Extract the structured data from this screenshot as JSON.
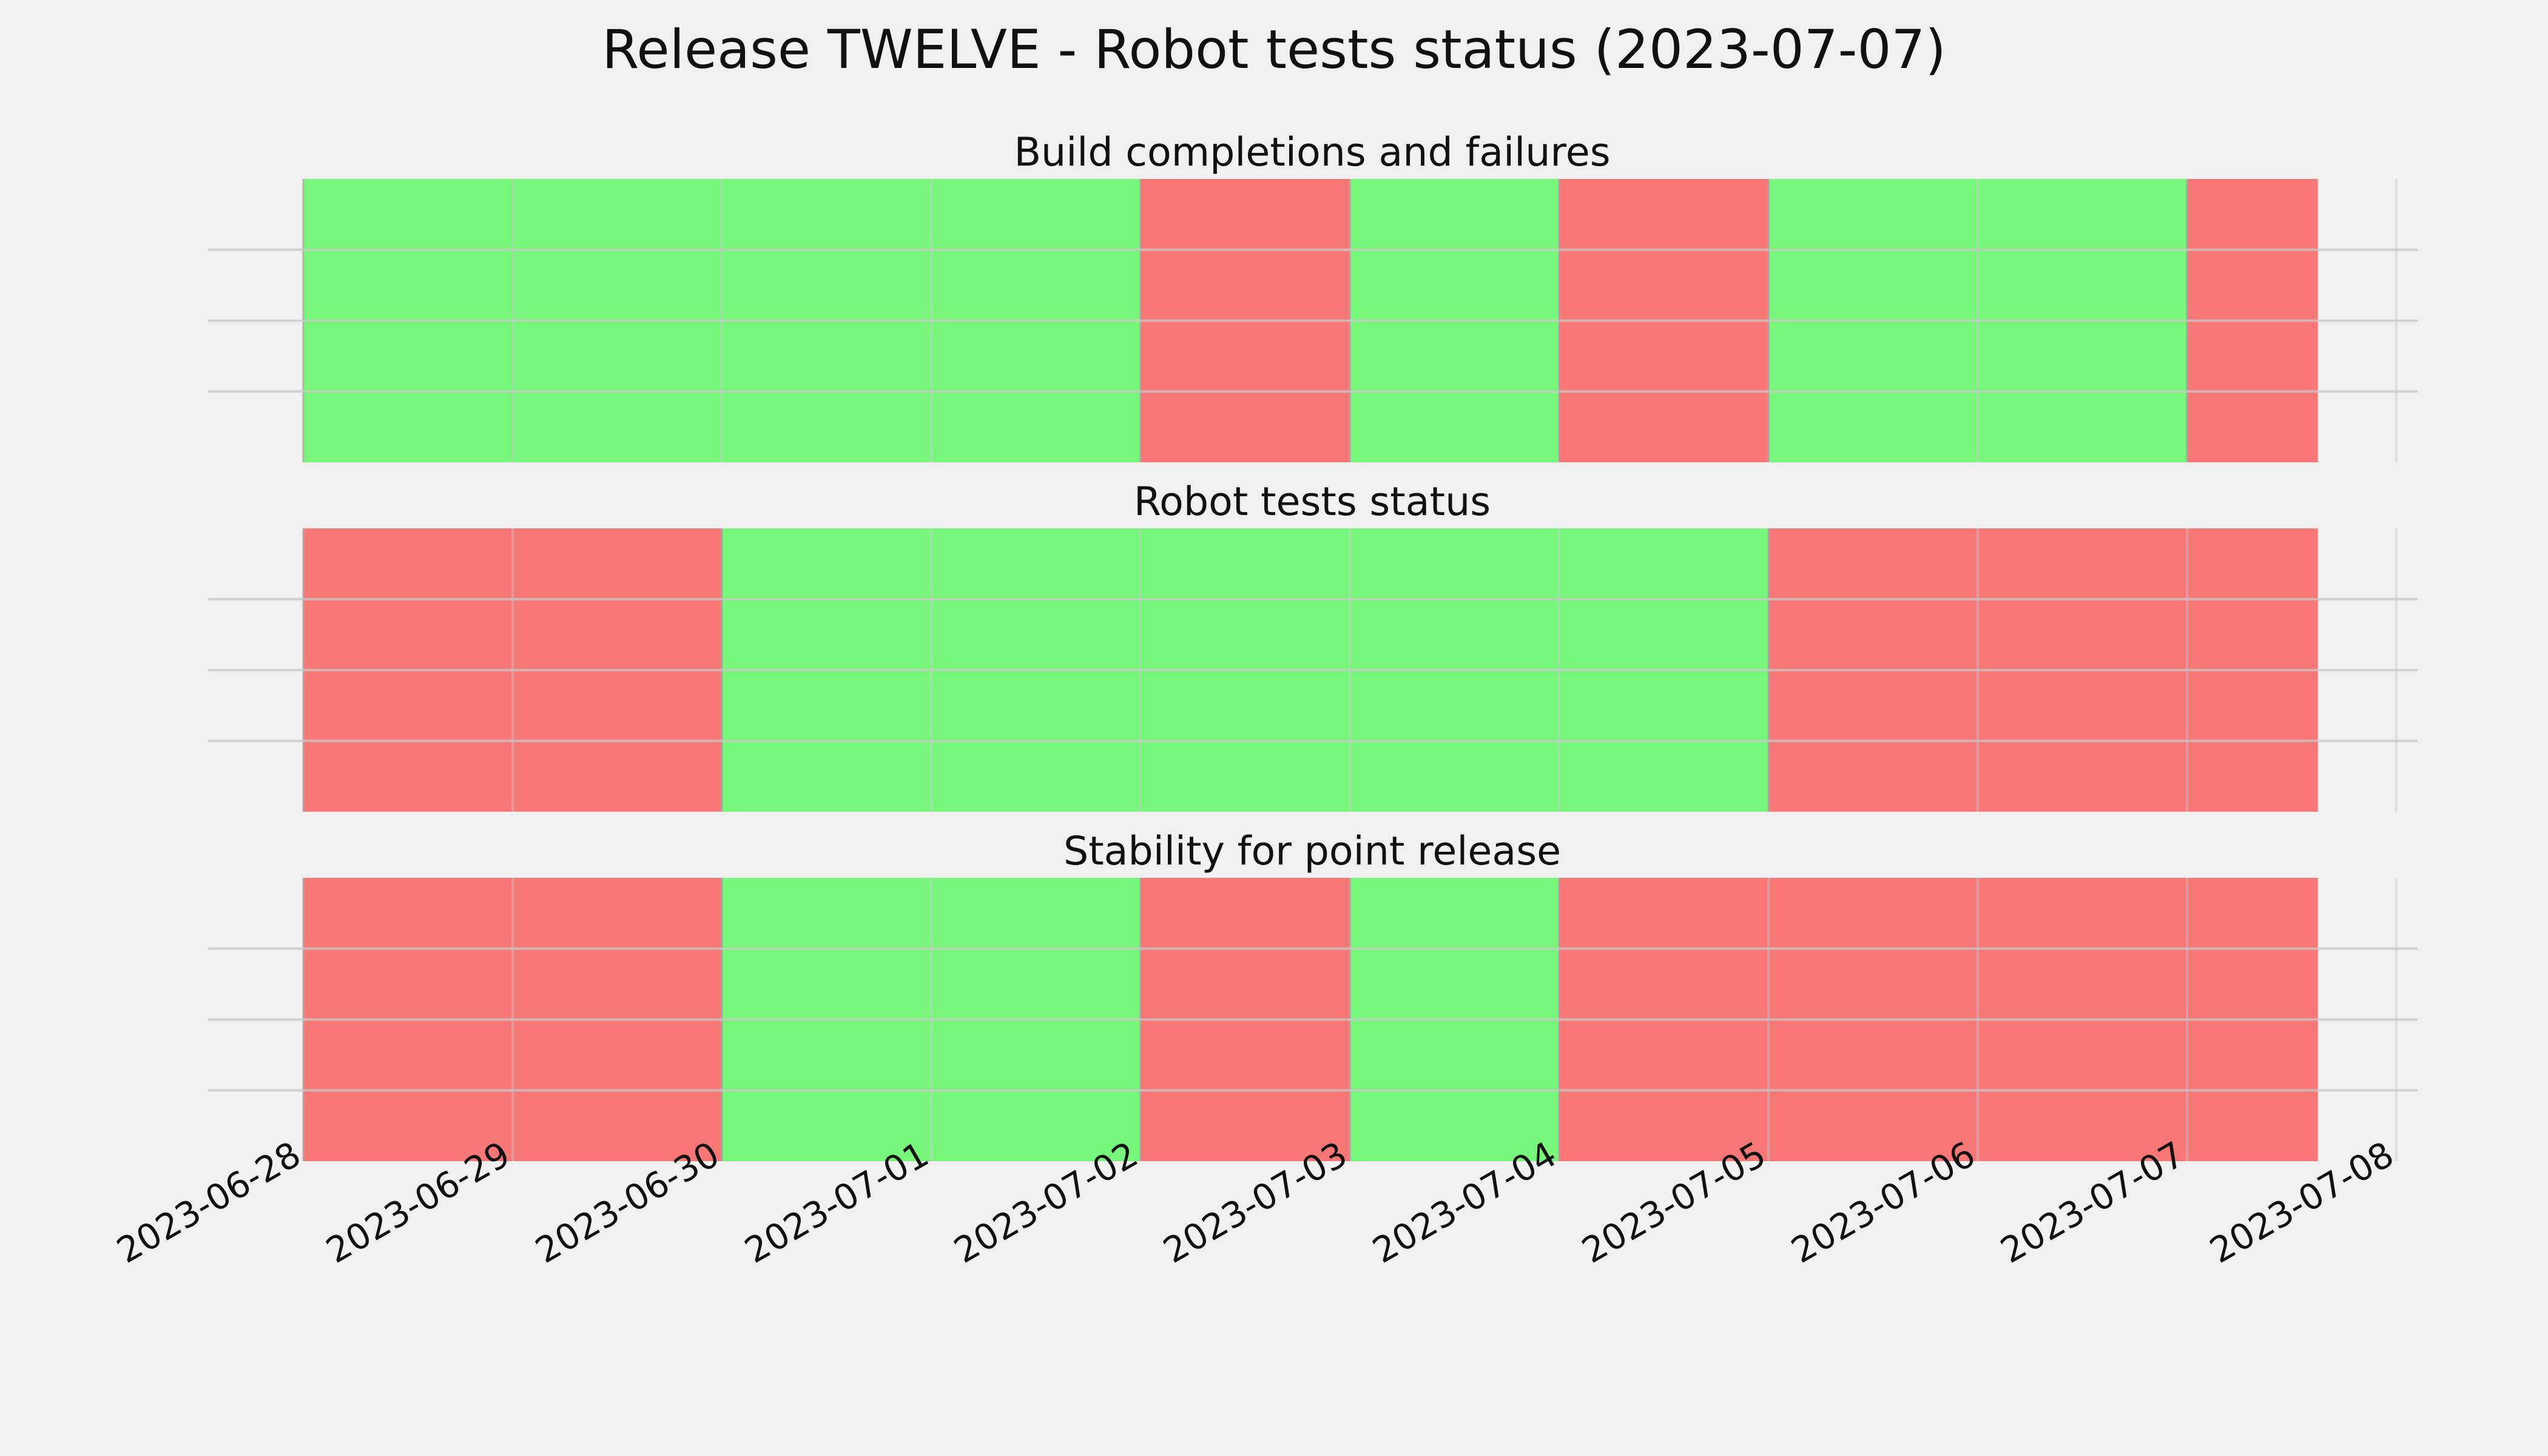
{
  "chart_data": {
    "type": "timeline",
    "title": "Release TWELVE - Robot tests status (2023-07-07)",
    "x_ticks": [
      "2023-06-28",
      "2023-06-29",
      "2023-06-30",
      "2023-07-01",
      "2023-07-02",
      "2023-07-03",
      "2023-07-04",
      "2023-07-05",
      "2023-07-06",
      "2023-07-07",
      "2023-07-08"
    ],
    "xlim": [
      "2023-06-28",
      "2023-07-08"
    ],
    "grid": true,
    "colors": {
      "pass": "#77f77a",
      "fail": "#f77676",
      "background": "#f0f0f0"
    },
    "panels": [
      {
        "title": "Build completions and failures",
        "segments": [
          {
            "start": "2023-06-28",
            "end": "2023-07-02",
            "status": "pass"
          },
          {
            "start": "2023-07-02",
            "end": "2023-07-03",
            "status": "fail"
          },
          {
            "start": "2023-07-03",
            "end": "2023-07-04",
            "status": "pass"
          },
          {
            "start": "2023-07-04",
            "end": "2023-07-05",
            "status": "fail"
          },
          {
            "start": "2023-07-05",
            "end": "2023-07-07",
            "status": "pass"
          },
          {
            "start": "2023-07-07",
            "end": "2023-07-07T15:00",
            "status": "fail"
          }
        ]
      },
      {
        "title": "Robot tests status",
        "segments": [
          {
            "start": "2023-06-28",
            "end": "2023-06-30",
            "status": "fail"
          },
          {
            "start": "2023-06-30",
            "end": "2023-07-05",
            "status": "pass"
          },
          {
            "start": "2023-07-05",
            "end": "2023-07-07T15:00",
            "status": "fail"
          }
        ]
      },
      {
        "title": "Stability for point release",
        "segments": [
          {
            "start": "2023-06-28",
            "end": "2023-06-30",
            "status": "fail"
          },
          {
            "start": "2023-06-30",
            "end": "2023-07-02",
            "status": "pass"
          },
          {
            "start": "2023-07-02",
            "end": "2023-07-03",
            "status": "fail"
          },
          {
            "start": "2023-07-03",
            "end": "2023-07-04",
            "status": "pass"
          },
          {
            "start": "2023-07-04",
            "end": "2023-07-07T15:00",
            "status": "fail"
          }
        ]
      }
    ]
  }
}
